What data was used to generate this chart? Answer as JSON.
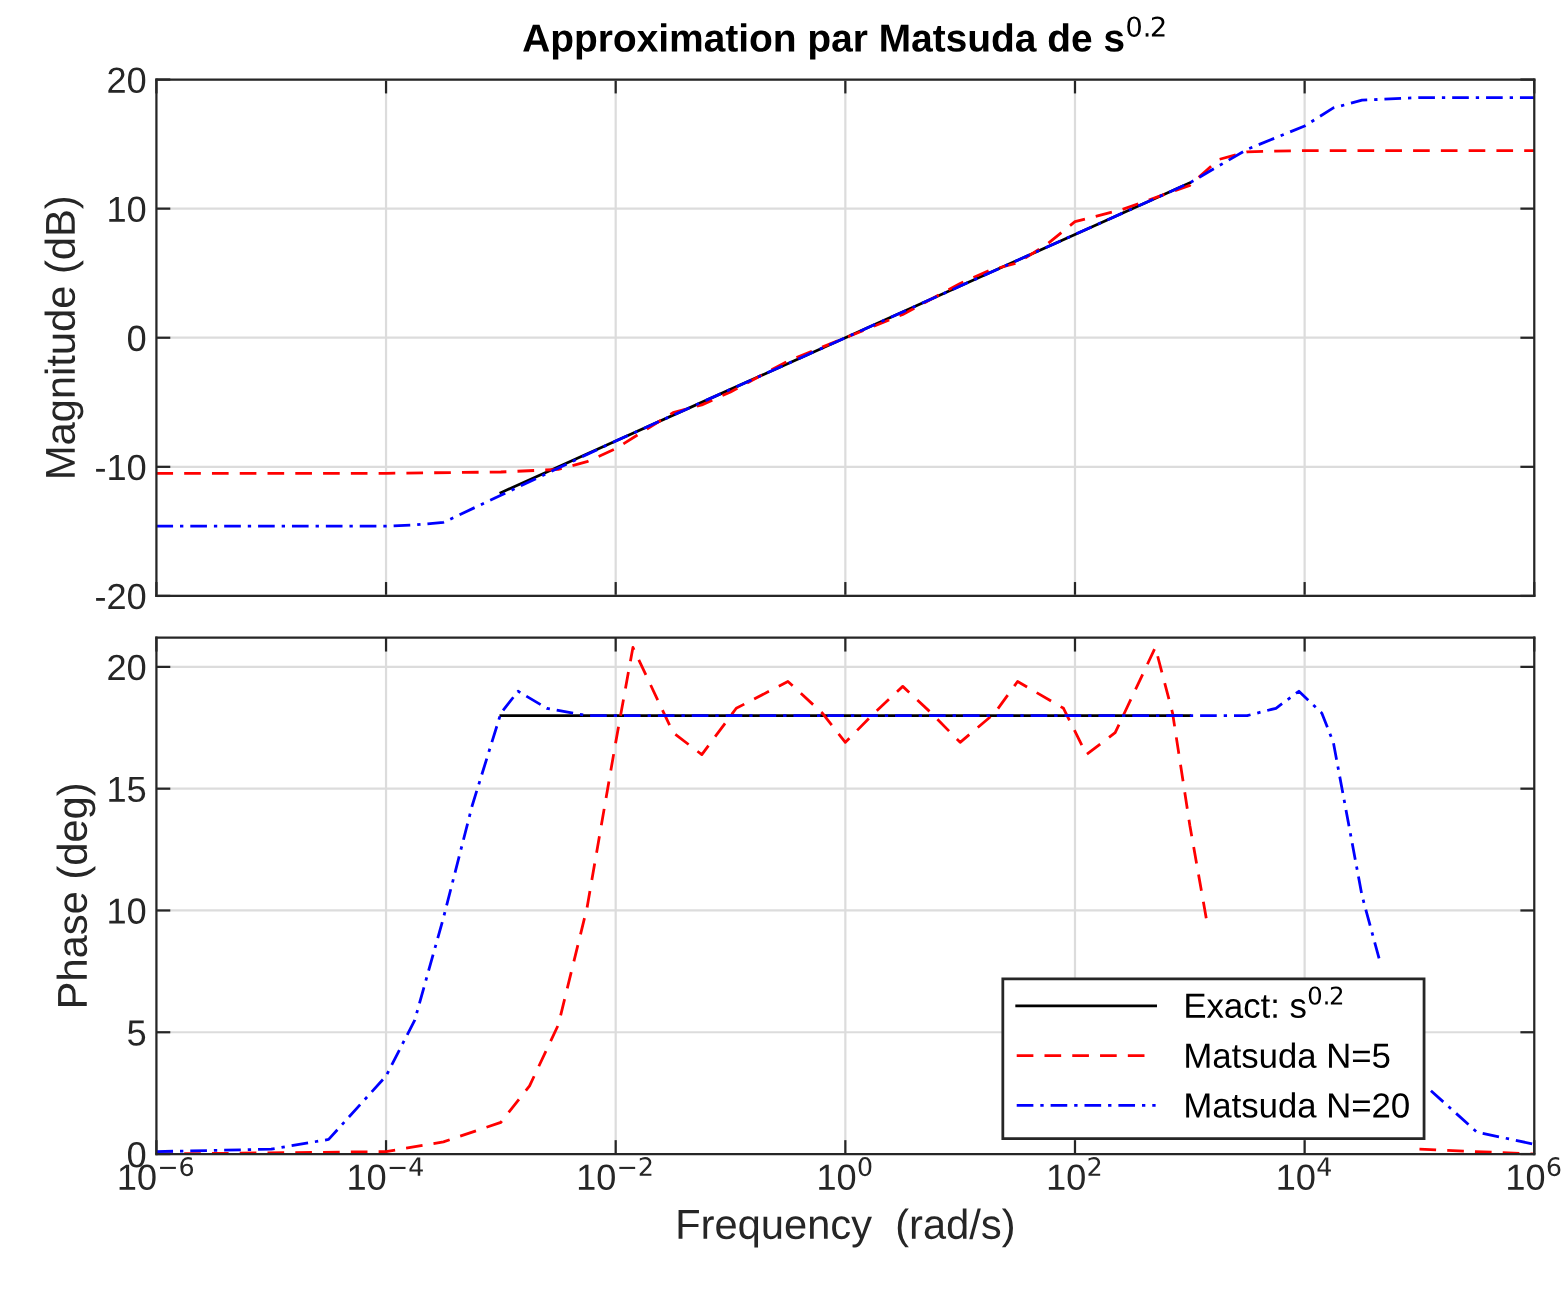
{
  "chart_data": [
    {
      "type": "line",
      "title": "Approximation par Matsuda de s$^{0.2}$",
      "ylabel": "Magnitude (dB)",
      "log": "x",
      "grid": true,
      "tick_labels": "y",
      "xlim": [
        1e-06,
        1000000.0
      ],
      "ylim": [
        -20,
        20
      ],
      "yticks": [
        -20,
        -10,
        0,
        10,
        20
      ],
      "xticks": [
        {
          "value": 1e-06,
          "label": null
        },
        {
          "value": 0.0001,
          "label": null
        },
        {
          "value": 0.01,
          "label": null
        },
        {
          "value": 1,
          "label": null
        },
        {
          "value": 100,
          "label": null
        },
        {
          "value": 10000,
          "label": null
        },
        {
          "value": 1000000,
          "label": null
        }
      ],
      "series": [
        {
          "color": "#000000",
          "line_style": "solid",
          "x": [
            0.001,
            0.01,
            0.1,
            1,
            10,
            100,
            1000
          ],
          "values": [
            -12,
            -8,
            -4,
            0,
            4,
            8,
            12
          ]
        },
        {
          "color": "#ff0000",
          "line_style": "dashed",
          "x": [
            1e-06,
            0.0001,
            0.001,
            0.0031623,
            0.0056234,
            0.01,
            0.017783,
            0.031623,
            0.056234,
            0.1,
            0.31623,
            1,
            3.1623,
            10,
            17.783,
            31.623,
            56.234,
            100,
            251.19,
            1000,
            1778.3,
            3162.3,
            10000,
            1000000
          ],
          "values": [
            -10.5,
            -10.5,
            -10.4,
            -10.2,
            -9.6,
            -8.6,
            -7.2,
            -5.8,
            -5.2,
            -4.2,
            -1.8,
            0,
            1.8,
            4.2,
            5.2,
            5.8,
            7.2,
            9.0,
            9.9,
            11.8,
            13.8,
            14.4,
            14.5,
            14.5
          ]
        },
        {
          "color": "#0000ff",
          "line_style": "dashdot",
          "x": [
            1e-06,
            0.0001,
            0.00017783,
            0.00031623,
            0.001,
            0.01,
            0.1,
            1,
            10,
            100,
            1000,
            3162.3,
            10000,
            17783,
            31623,
            100000,
            1000000
          ],
          "values": [
            -14.6,
            -14.6,
            -14.5,
            -14.3,
            -12.2,
            -8,
            -4,
            0,
            4,
            8,
            12,
            14.6,
            16.4,
            17.8,
            18.4,
            18.6,
            18.6
          ]
        }
      ]
    },
    {
      "type": "line",
      "xlabel": "Frequency  (rad/s)",
      "ylabel": "Phase (deg)",
      "log": "x",
      "grid": true,
      "legend": "bottom right",
      "xlim": [
        1e-06,
        1000000.0
      ],
      "ylim": [
        0,
        21.2
      ],
      "yticks": [
        0,
        5,
        10,
        15,
        20
      ],
      "xticks": [
        {
          "value": 1e-06,
          "label": "10$^{−6}$"
        },
        {
          "value": 0.0001,
          "label": "10$^{−4}$"
        },
        {
          "value": 0.01,
          "label": "10$^{−2}$"
        },
        {
          "value": 1,
          "label": "10$^{0}$"
        },
        {
          "value": 100,
          "label": "10$^{2}$"
        },
        {
          "value": 10000,
          "label": "10$^{4}$"
        },
        {
          "value": 1000000,
          "label": "10$^{6}$"
        }
      ],
      "series": [
        {
          "name": "Exact: s$^{0.2}$",
          "color": "#000000",
          "line_style": "solid",
          "x": [
            0.001,
            1000
          ],
          "values": [
            18,
            18
          ]
        },
        {
          "name": "Matsuda N=5",
          "color": "#ff0000",
          "line_style": "dashed",
          "x": [
            1e-06,
            0.0001,
            0.00031623,
            0.001,
            0.0017783,
            0.0031623,
            0.0056234,
            0.01,
            0.014125,
            0.031623,
            0.056234,
            0.1122,
            0.31623,
            0.63096,
            1,
            1.7783,
            3.1623,
            5.6234,
            10,
            19.953,
            31.623,
            79.433,
            125.89,
            223.87,
            501.19,
            707.95,
            1000,
            1412.5,
            1778.3,
            3162.3,
            5623.4,
            10000,
            100000,
            1000000
          ],
          "values": [
            0,
            0.1,
            0.5,
            1.3,
            2.8,
            5.3,
            10.1,
            16.9,
            20.8,
            17.3,
            16.4,
            18.3,
            19.4,
            18.1,
            16.9,
            18.1,
            19.2,
            18.1,
            16.9,
            18.1,
            19.4,
            18.3,
            16.4,
            17.3,
            20.8,
            18.1,
            13.5,
            9.5,
            null,
            null,
            null,
            null,
            0.2,
            0
          ]
        },
        {
          "name": "Matsuda N=20",
          "color": "#0000ff",
          "line_style": "dashdot",
          "x": [
            1e-06,
            1e-05,
            3.1623e-05,
            0.0001,
            0.00017783,
            0.00031623,
            0.00056234,
            0.001,
            0.0014125,
            0.0025119,
            0.0056234,
            3162.3,
            5623.4,
            8912.5,
            14125,
            17783,
            31623,
            44668,
            56234,
            100000,
            125890,
            316230,
            1000000
          ],
          "values": [
            0.1,
            0.2,
            0.6,
            3.2,
            5.5,
            9.7,
            14.3,
            18.1,
            19.0,
            18.3,
            18.0,
            18.0,
            18.3,
            19.0,
            18.1,
            16.9,
            10.6,
            8.0,
            null,
            null,
            2.6,
            0.9,
            0.4
          ]
        }
      ]
    }
  ]
}
